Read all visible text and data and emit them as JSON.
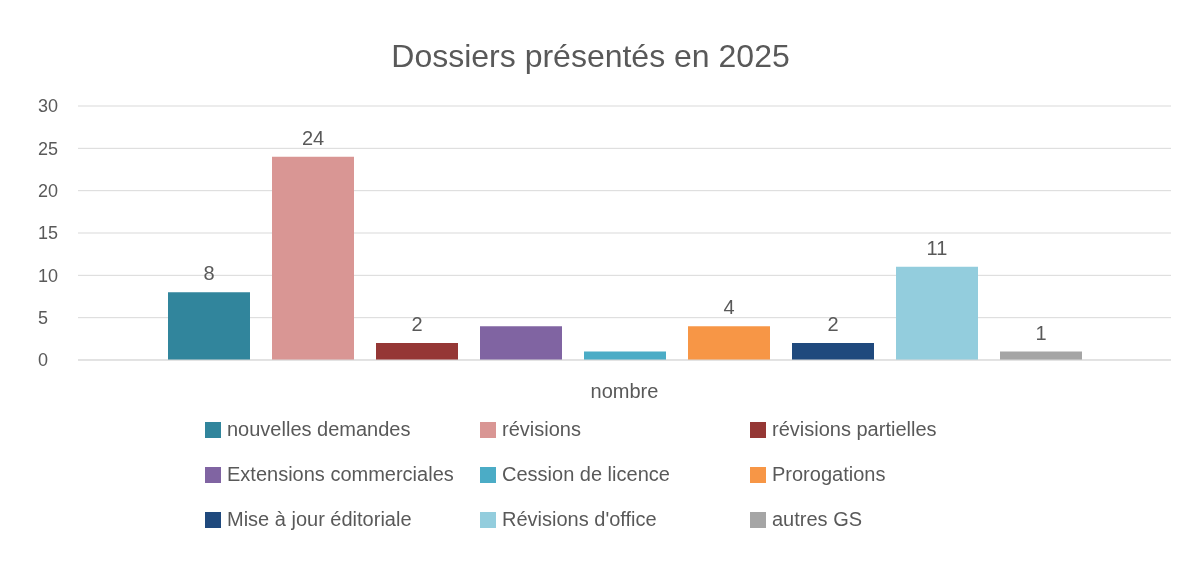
{
  "chart_data": {
    "type": "bar",
    "title": "Dossiers présentés en 2025",
    "categories": [
      "nombre"
    ],
    "ylim": [
      0,
      30
    ],
    "yticks": [
      0,
      5,
      10,
      15,
      20,
      25,
      30
    ],
    "grid": "y",
    "legend": "bottom",
    "series": [
      {
        "name": "nouvelles demandes",
        "color": "#31859c",
        "values": [
          8
        ],
        "value_labels": [
          "8"
        ]
      },
      {
        "name": "révisions",
        "color": "#d99694",
        "values": [
          24
        ],
        "value_labels": [
          "24"
        ]
      },
      {
        "name": "révisions partielles",
        "color": "#953735",
        "values": [
          2
        ],
        "value_labels": [
          "2"
        ]
      },
      {
        "name": "Extensions commerciales",
        "color": "#8064a2",
        "values": [
          4
        ],
        "value_labels": [
          null
        ]
      },
      {
        "name": "Cession de licence",
        "color": "#4bacc6",
        "values": [
          1
        ],
        "value_labels": [
          null
        ]
      },
      {
        "name": "Prorogations",
        "color": "#f79646",
        "values": [
          4
        ],
        "value_labels": [
          "4"
        ]
      },
      {
        "name": "Mise à jour éditoriale",
        "color": "#1f497d",
        "values": [
          2
        ],
        "value_labels": [
          "2"
        ]
      },
      {
        "name": "Révisions d'office",
        "color": "#93cddd",
        "values": [
          11
        ],
        "value_labels": [
          "11"
        ]
      },
      {
        "name": "autres GS",
        "color": "#a5a5a5",
        "values": [
          1
        ],
        "value_labels": [
          "1"
        ]
      }
    ]
  }
}
